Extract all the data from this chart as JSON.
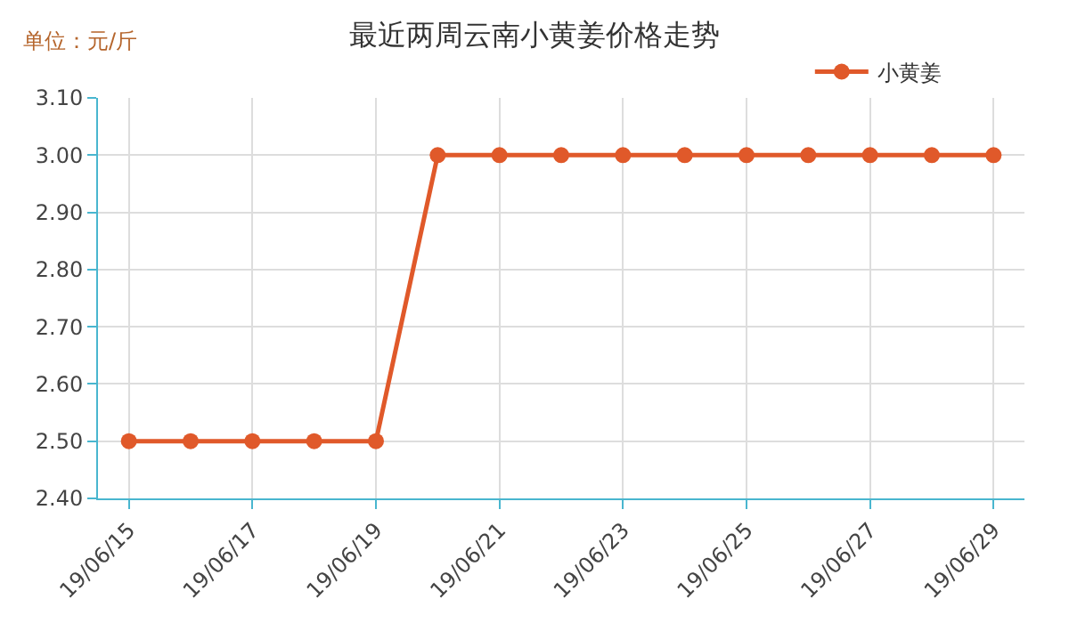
{
  "chart_data": {
    "type": "line",
    "title": "最近两周云南小黄姜价格走势",
    "annotations": [
      "单位：元/斤"
    ],
    "categories": [
      "19/06/15",
      null,
      "19/06/17",
      null,
      "19/06/19",
      null,
      "19/06/21",
      null,
      "19/06/23",
      null,
      "19/06/25",
      null,
      "19/06/27",
      null,
      "19/06/29"
    ],
    "series": [
      {
        "name": "小黄姜",
        "color": "#e0592a",
        "values": [
          2.5,
          2.5,
          2.5,
          2.5,
          2.5,
          3.0,
          3.0,
          3.0,
          3.0,
          3.0,
          3.0,
          3.0,
          3.0,
          3.0,
          3.0
        ]
      }
    ],
    "ylim": [
      2.4,
      3.1
    ],
    "yticks": [
      {
        "value": 2.4,
        "label": "2.40"
      },
      {
        "value": 2.5,
        "label": "2.50"
      },
      {
        "value": 2.6,
        "label": "2.60"
      },
      {
        "value": 2.7,
        "label": "2.70"
      },
      {
        "value": 2.8,
        "label": "2.80"
      },
      {
        "value": 2.9,
        "label": "2.90"
      },
      {
        "value": 3.0,
        "label": "3.00"
      },
      {
        "value": 3.1,
        "label": "3.10"
      }
    ],
    "grid": true,
    "legend": "top right",
    "marker": "circle",
    "line_style": "solid"
  }
}
